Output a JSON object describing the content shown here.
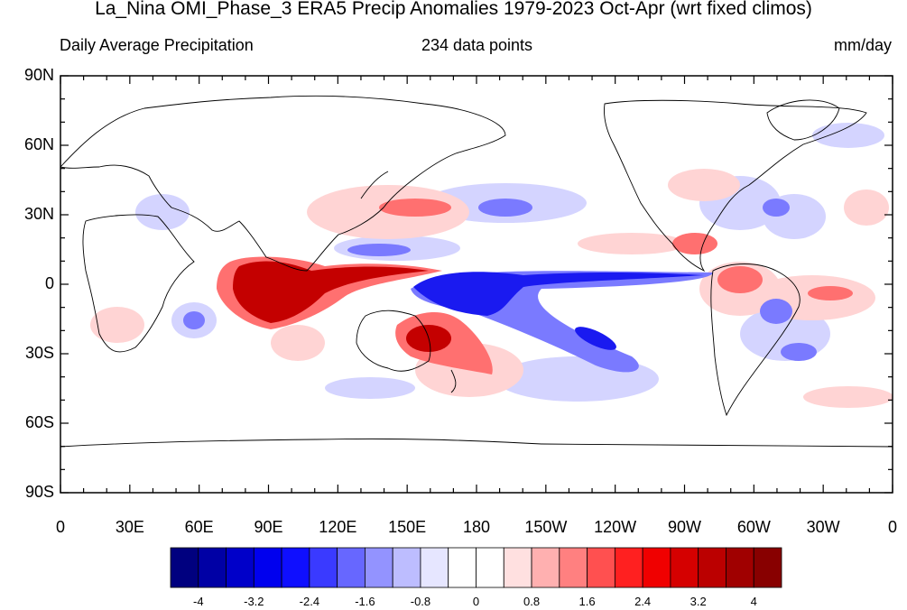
{
  "title": "La_Nina OMI_Phase_3 ERA5 Precip Anomalies 1979-2023 Oct-Apr (wrt fixed climos)",
  "subtitle_left": "Daily Average Precipitation",
  "subtitle_center": "234 data points",
  "subtitle_right": "mm/day",
  "lat_labels": [
    "90N",
    "60N",
    "30N",
    "0",
    "30S",
    "60S",
    "90S"
  ],
  "lon_labels": [
    "0",
    "30E",
    "60E",
    "90E",
    "120E",
    "150E",
    "180",
    "150W",
    "120W",
    "90W",
    "60W",
    "30W",
    "0"
  ],
  "colorbar": {
    "colors": [
      "#00007f",
      "#0000a5",
      "#0000c9",
      "#0000ee",
      "#0f0fff",
      "#3a3aff",
      "#6767ff",
      "#9393ff",
      "#bdbdff",
      "#e6e6ff",
      "#ffffff",
      "#ffffff",
      "#ffe0e0",
      "#ffb0b0",
      "#ff8080",
      "#ff5050",
      "#ff2020",
      "#f00000",
      "#d50000",
      "#bb0000",
      "#a00000",
      "#880000"
    ],
    "labels": [
      "-4",
      "-3.2",
      "-2.4",
      "-1.6",
      "-0.8",
      "0",
      "0.8",
      "1.6",
      "2.4",
      "3.2",
      "4"
    ]
  },
  "colors": {
    "strong_positive": "#c40000",
    "positive": "#ff6060",
    "weak_positive": "#ffc8c8",
    "strong_negative": "#1010e0",
    "negative": "#6a6aff",
    "weak_negative": "#c8c8ff"
  }
}
